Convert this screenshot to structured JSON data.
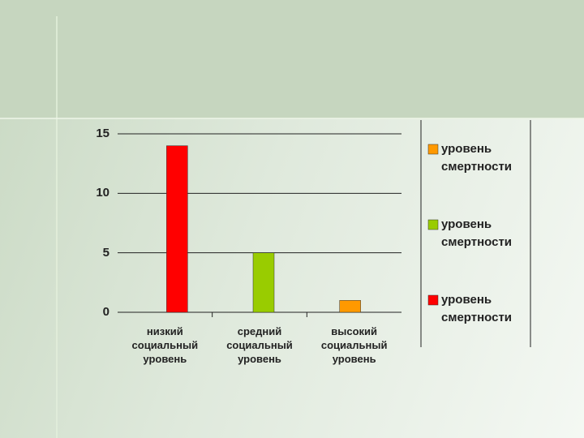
{
  "chart_data": {
    "type": "bar",
    "categories": [
      "низкий социальный уровень",
      "средний социальный уровень",
      "высокий социальный уровень"
    ],
    "series": [
      {
        "name": "уровень смертности",
        "values": [
          14,
          5,
          1
        ],
        "colors": [
          "#ff0000",
          "#99cc00",
          "#ff9900"
        ]
      }
    ],
    "ylim": [
      0,
      15
    ],
    "yticks": [
      0,
      5,
      10,
      15
    ],
    "grid": true
  }
}
